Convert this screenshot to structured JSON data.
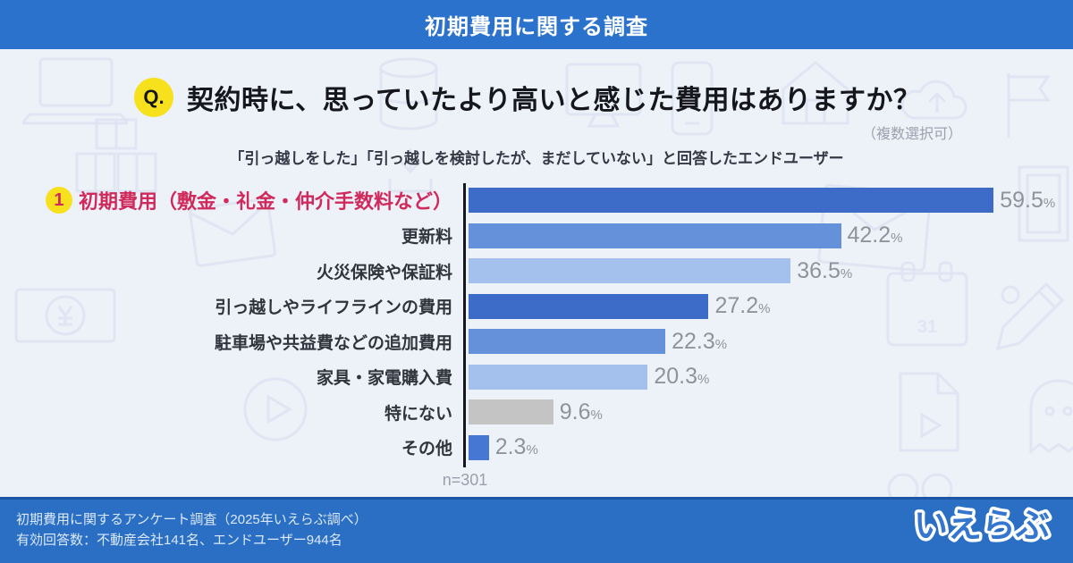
{
  "header": {
    "title": "初期費用に関する調査"
  },
  "question": {
    "badge": "Q.",
    "title": "契約時に、思っていたより高いと感じた費用はありますか？",
    "note": "（複数選択可）",
    "subtitle": "「引っ越しをした」「引っ越しを検討したが、まだしていない」と回答したエンドユーザー"
  },
  "chart_data": {
    "type": "bar",
    "orientation": "horizontal",
    "title": "契約時に、思っていたより高いと感じた費用はありますか？",
    "categories": [
      "初期費用（敷金・礼金・仲介手数料など）",
      "更新料",
      "火災保険や保証料",
      "引っ越しやライフラインの費用",
      "駐車場や共益費などの追加費用",
      "家具・家電購入費",
      "特にない",
      "その他"
    ],
    "values": [
      59.5,
      42.2,
      36.5,
      27.2,
      22.3,
      20.3,
      9.6,
      2.3
    ],
    "unit": "%",
    "xlim": [
      0,
      66.5
    ],
    "bar_colors": [
      "#3d6cc8",
      "#6590da",
      "#a4c0ec",
      "#3d6cc8",
      "#6590da",
      "#a4c0ec",
      "#c4c4c4",
      "#4577d3"
    ],
    "highlight": {
      "index": 0,
      "rank": "1",
      "color": "#d02a5c"
    },
    "sample_size": "n=301",
    "grid": false,
    "legend": false
  },
  "footer": {
    "line1": "初期費用に関するアンケート調査（2025年いえらぶ調べ）",
    "line2": "有効回答数：不動産会社141名、エンドユーザー944名",
    "logo": "いえらぶ"
  },
  "background": {
    "calendar_day": "31",
    "icon_names": [
      "laptop-icon",
      "boxes-icon",
      "database-icon",
      "download-tray-icon",
      "monitor-icon",
      "phone-icon",
      "house-icon",
      "cloud-icon",
      "flag-icon",
      "frame-icon",
      "envelope-icon",
      "yen-bill-icon",
      "calendar-icon",
      "pencil-icon",
      "play-circle-icon",
      "video-doc-icon",
      "ghost-icon",
      "infinity-icon"
    ]
  },
  "colors": {
    "header_bg": "#2b72cd",
    "footer_bg": "#2b6fc4",
    "canvas_bg": "#edf1f8",
    "accent_yellow": "#f6e11c",
    "highlight_red": "#d02a5c",
    "value_gray": "#8f939b",
    "axis_black": "#15171c",
    "logo_blue": "#3577cf"
  }
}
